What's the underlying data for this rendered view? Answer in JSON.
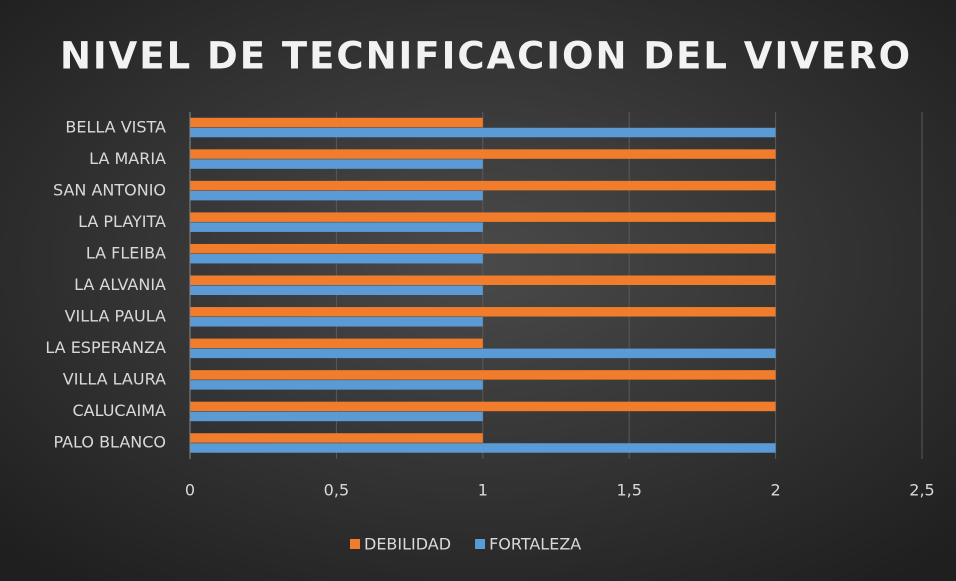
{
  "chart_data": {
    "type": "barh",
    "title": "NIVEL DE TECNIFICACION  DEL VIVERO",
    "categories": [
      "BELLA VISTA",
      "LA MARIA",
      "SAN ANTONIO",
      "LA PLAYITA",
      "LA FLEIBA",
      "LA ALVANIA",
      "VILLA PAULA",
      "LA ESPERANZA",
      "VILLA  LAURA",
      "CALUCAIMA",
      "PALO BLANCO"
    ],
    "series": [
      {
        "name": "DEBILIDAD",
        "color": "#f07c2c",
        "values": [
          1,
          2,
          2,
          2,
          2,
          2,
          2,
          1,
          2,
          2,
          1
        ]
      },
      {
        "name": "FORTALEZA",
        "color": "#5b9bd5",
        "values": [
          2,
          1,
          1,
          1,
          1,
          1,
          1,
          2,
          1,
          1,
          2
        ]
      }
    ],
    "xlim": [
      0,
      2.5
    ],
    "xticks": [
      0,
      {
        "value": 0.5,
        "label": "0,5"
      },
      1,
      {
        "value": 1.5,
        "label": "1,5"
      },
      2,
      {
        "value": 2.5,
        "label": "2,5"
      }
    ],
    "grid": true,
    "legend": "bottom"
  }
}
